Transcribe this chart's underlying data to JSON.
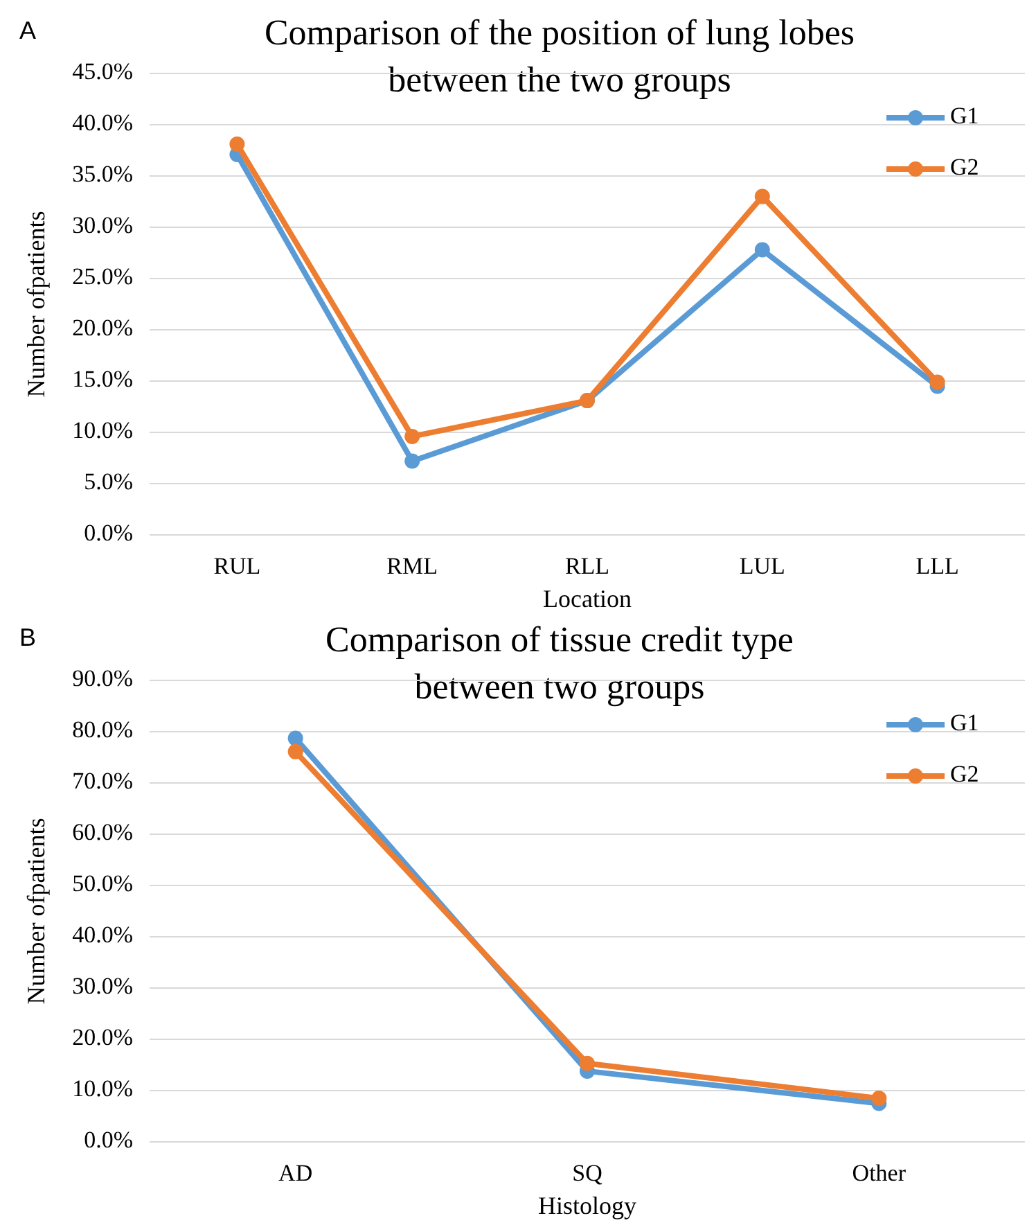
{
  "chart_data": [
    {
      "type": "line",
      "title": "Comparison of the position of lung lobes\nbetween the two groups",
      "xlabel": "Location",
      "ylabel": "Number ofpatients",
      "annotations": [
        "A"
      ],
      "categories": [
        "RUL",
        "RML",
        "RLL",
        "LUL",
        "LLL"
      ],
      "series": [
        {
          "name": "G1",
          "color": "#5b9bd5",
          "values": [
            37.1,
            7.2,
            13.1,
            27.8,
            14.5
          ]
        },
        {
          "name": "G2",
          "color": "#ed7d31",
          "values": [
            38.1,
            9.6,
            13.1,
            33.0,
            14.9
          ]
        }
      ],
      "ylim": [
        0,
        45
      ],
      "yticks": [
        {
          "value": 0,
          "label": "0.0%"
        },
        {
          "value": 5,
          "label": "5.0%"
        },
        {
          "value": 10,
          "label": "10.0%"
        },
        {
          "value": 15,
          "label": "15.0%"
        },
        {
          "value": 20,
          "label": "20.0%"
        },
        {
          "value": 25,
          "label": "25.0%"
        },
        {
          "value": 30,
          "label": "30.0%"
        },
        {
          "value": 35,
          "label": "35.0%"
        },
        {
          "value": 40,
          "label": "40.0%"
        },
        {
          "value": 45,
          "label": "45.0%"
        }
      ],
      "grid": "y",
      "legend": "top right",
      "marker": "circle"
    },
    {
      "type": "line",
      "title": "Comparison of tissue credit type\nbetween two groups",
      "xlabel": "Histology",
      "ylabel": "Number ofpatients",
      "annotations": [
        "B"
      ],
      "categories": [
        "AD",
        "SQ",
        "Other"
      ],
      "series": [
        {
          "name": "G1",
          "color": "#5b9bd5",
          "values": [
            78.7,
            13.8,
            7.5
          ]
        },
        {
          "name": "G2",
          "color": "#ed7d31",
          "values": [
            76.1,
            15.3,
            8.5
          ]
        }
      ],
      "ylim": [
        0,
        90
      ],
      "yticks": [
        {
          "value": 0,
          "label": "0.0%"
        },
        {
          "value": 10,
          "label": "10.0%"
        },
        {
          "value": 20,
          "label": "20.0%"
        },
        {
          "value": 30,
          "label": "30.0%"
        },
        {
          "value": 40,
          "label": "40.0%"
        },
        {
          "value": 50,
          "label": "50.0%"
        },
        {
          "value": 60,
          "label": "60.0%"
        },
        {
          "value": 70,
          "label": "70.0%"
        },
        {
          "value": 80,
          "label": "80.0%"
        },
        {
          "value": 90,
          "label": "90.0%"
        }
      ],
      "grid": "y",
      "legend": "top right",
      "marker": "circle"
    }
  ]
}
